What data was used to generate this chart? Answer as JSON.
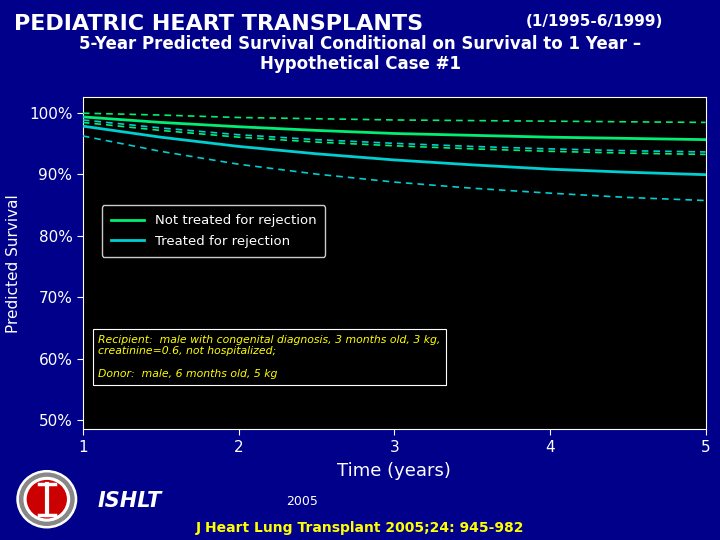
{
  "title_main": "PEDIATRIC HEART TRANSPLANTS",
  "title_date": "(1/1995-6/1999)",
  "title_sub1": "5-Year Predicted Survival Conditional on Survival to 1 Year –",
  "title_sub2": "Hypothetical Case #1",
  "bg_outer": "#00008B",
  "bg_plot": "#000000",
  "xlabel": "Time (years)",
  "ylabel": "Predicted Survival",
  "yticks": [
    0.5,
    0.6,
    0.7,
    0.8,
    0.9,
    1.0
  ],
  "ytick_labels": [
    "50%",
    "60%",
    "70%",
    "80%",
    "90%",
    "100%"
  ],
  "xticks": [
    1,
    2,
    3,
    4,
    5
  ],
  "xlim": [
    1,
    5
  ],
  "ylim": [
    0.485,
    1.025
  ],
  "line_green_center": [
    [
      1,
      0.993
    ],
    [
      1.5,
      0.984
    ],
    [
      2,
      0.977
    ],
    [
      2.5,
      0.971
    ],
    [
      3,
      0.966
    ],
    [
      3.5,
      0.963
    ],
    [
      4,
      0.96
    ],
    [
      4.5,
      0.958
    ],
    [
      5,
      0.956
    ]
  ],
  "line_green_upper": [
    [
      1,
      0.999
    ],
    [
      1.5,
      0.996
    ],
    [
      2,
      0.992
    ],
    [
      2.5,
      0.99
    ],
    [
      3,
      0.988
    ],
    [
      3.5,
      0.987
    ],
    [
      4,
      0.986
    ],
    [
      4.5,
      0.985
    ],
    [
      5,
      0.984
    ]
  ],
  "line_green_lower": [
    [
      1,
      0.984
    ],
    [
      1.5,
      0.971
    ],
    [
      2,
      0.96
    ],
    [
      2.5,
      0.952
    ],
    [
      3,
      0.946
    ],
    [
      3.5,
      0.941
    ],
    [
      4,
      0.937
    ],
    [
      4.5,
      0.934
    ],
    [
      5,
      0.932
    ]
  ],
  "line_cyan_center": [
    [
      1,
      0.978
    ],
    [
      1.5,
      0.96
    ],
    [
      2,
      0.945
    ],
    [
      2.5,
      0.933
    ],
    [
      3,
      0.923
    ],
    [
      3.5,
      0.915
    ],
    [
      4,
      0.908
    ],
    [
      4.5,
      0.903
    ],
    [
      5,
      0.899
    ]
  ],
  "line_cyan_upper": [
    [
      1,
      0.988
    ],
    [
      1.5,
      0.975
    ],
    [
      2,
      0.964
    ],
    [
      2.5,
      0.956
    ],
    [
      3,
      0.95
    ],
    [
      3.5,
      0.945
    ],
    [
      4,
      0.941
    ],
    [
      4.5,
      0.938
    ],
    [
      5,
      0.936
    ]
  ],
  "line_cyan_lower": [
    [
      1,
      0.962
    ],
    [
      1.5,
      0.937
    ],
    [
      2,
      0.916
    ],
    [
      2.5,
      0.9
    ],
    [
      3,
      0.887
    ],
    [
      3.5,
      0.877
    ],
    [
      4,
      0.869
    ],
    [
      4.5,
      0.862
    ],
    [
      5,
      0.857
    ]
  ],
  "color_green": "#00EE76",
  "color_cyan": "#00CED1",
  "color_white": "#FFFFFF",
  "color_yellow": "#FFFF00",
  "annotation_line1": "Recipient:  male with congenital diagnosis, 3 months old, 3 kg,",
  "annotation_line2": "creatinine=0.6, not hospitalized;",
  "annotation_line3": "Donor:  male, 6 months old, 5 kg",
  "footer_ishlt": "ISHLT",
  "footer_year": "2005",
  "footer_journal": "J Heart Lung Transplant 2005;24: 945-982",
  "legend_entry1": "Not treated for rejection",
  "legend_entry2": "Treated for rejection"
}
